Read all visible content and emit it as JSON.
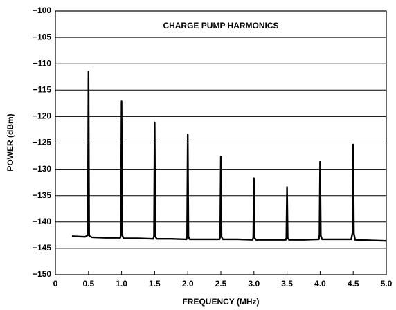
{
  "chart_data": {
    "type": "line",
    "title": "CHARGE PUMP HARMONICS",
    "xlabel": "FREQUENCY (MHz)",
    "ylabel": "POWER (dBm)",
    "color": "#000000",
    "grid": true,
    "x": [
      0.25,
      0.45,
      0.49,
      0.5,
      0.51,
      0.55,
      0.75,
      0.98,
      0.99,
      1.0,
      1.01,
      1.03,
      1.25,
      1.48,
      1.49,
      1.5,
      1.51,
      1.53,
      1.75,
      1.98,
      1.99,
      2.0,
      2.01,
      2.03,
      2.25,
      2.48,
      2.49,
      2.5,
      2.51,
      2.53,
      2.75,
      2.98,
      2.99,
      3.0,
      3.01,
      3.03,
      3.25,
      3.48,
      3.49,
      3.5,
      3.51,
      3.53,
      3.75,
      3.98,
      3.99,
      4.0,
      4.01,
      4.03,
      4.25,
      4.47,
      4.49,
      4.5,
      4.51,
      4.53,
      4.75,
      5.0
    ],
    "values": [
      -142.7,
      -142.8,
      -142.5,
      -111.5,
      -142.6,
      -142.9,
      -143.0,
      -143.0,
      -142.4,
      -117.1,
      -142.5,
      -143.1,
      -143.1,
      -143.2,
      -142.6,
      -121.1,
      -142.7,
      -143.2,
      -143.2,
      -143.3,
      -142.7,
      -123.4,
      -142.8,
      -143.3,
      -143.3,
      -143.3,
      -142.8,
      -127.6,
      -142.8,
      -143.3,
      -143.3,
      -143.4,
      -142.9,
      -131.7,
      -143.0,
      -143.4,
      -143.4,
      -143.4,
      -143.0,
      -133.4,
      -143.0,
      -143.4,
      -143.4,
      -143.3,
      -142.5,
      -128.5,
      -142.6,
      -143.3,
      -143.3,
      -143.3,
      -142.0,
      -125.3,
      -142.2,
      -143.4,
      -143.5,
      -143.6
    ],
    "xlim": [
      0,
      5.0
    ],
    "xticks": [
      0,
      0.5,
      {
        "value": 1,
        "label": "1.0"
      },
      1.5,
      {
        "value": 2,
        "label": "2.0"
      },
      2.5,
      {
        "value": 3,
        "label": "3.0"
      },
      3.5,
      {
        "value": 4,
        "label": "4.0"
      },
      4.5,
      {
        "value": 5,
        "label": "5.0"
      }
    ],
    "ylim": [
      -150,
      -100
    ],
    "yticks": [
      {
        "value": -100,
        "label": "−100"
      },
      {
        "value": -105,
        "label": "−105"
      },
      {
        "value": -110,
        "label": "−110"
      },
      {
        "value": -115,
        "label": "−115"
      },
      {
        "value": -120,
        "label": "−120"
      },
      {
        "value": -125,
        "label": "−125"
      },
      {
        "value": -130,
        "label": "−130"
      },
      {
        "value": -135,
        "label": "−135"
      },
      {
        "value": -140,
        "label": "−140"
      },
      {
        "value": -145,
        "label": "−145"
      },
      {
        "value": -150,
        "label": "−150"
      }
    ]
  }
}
